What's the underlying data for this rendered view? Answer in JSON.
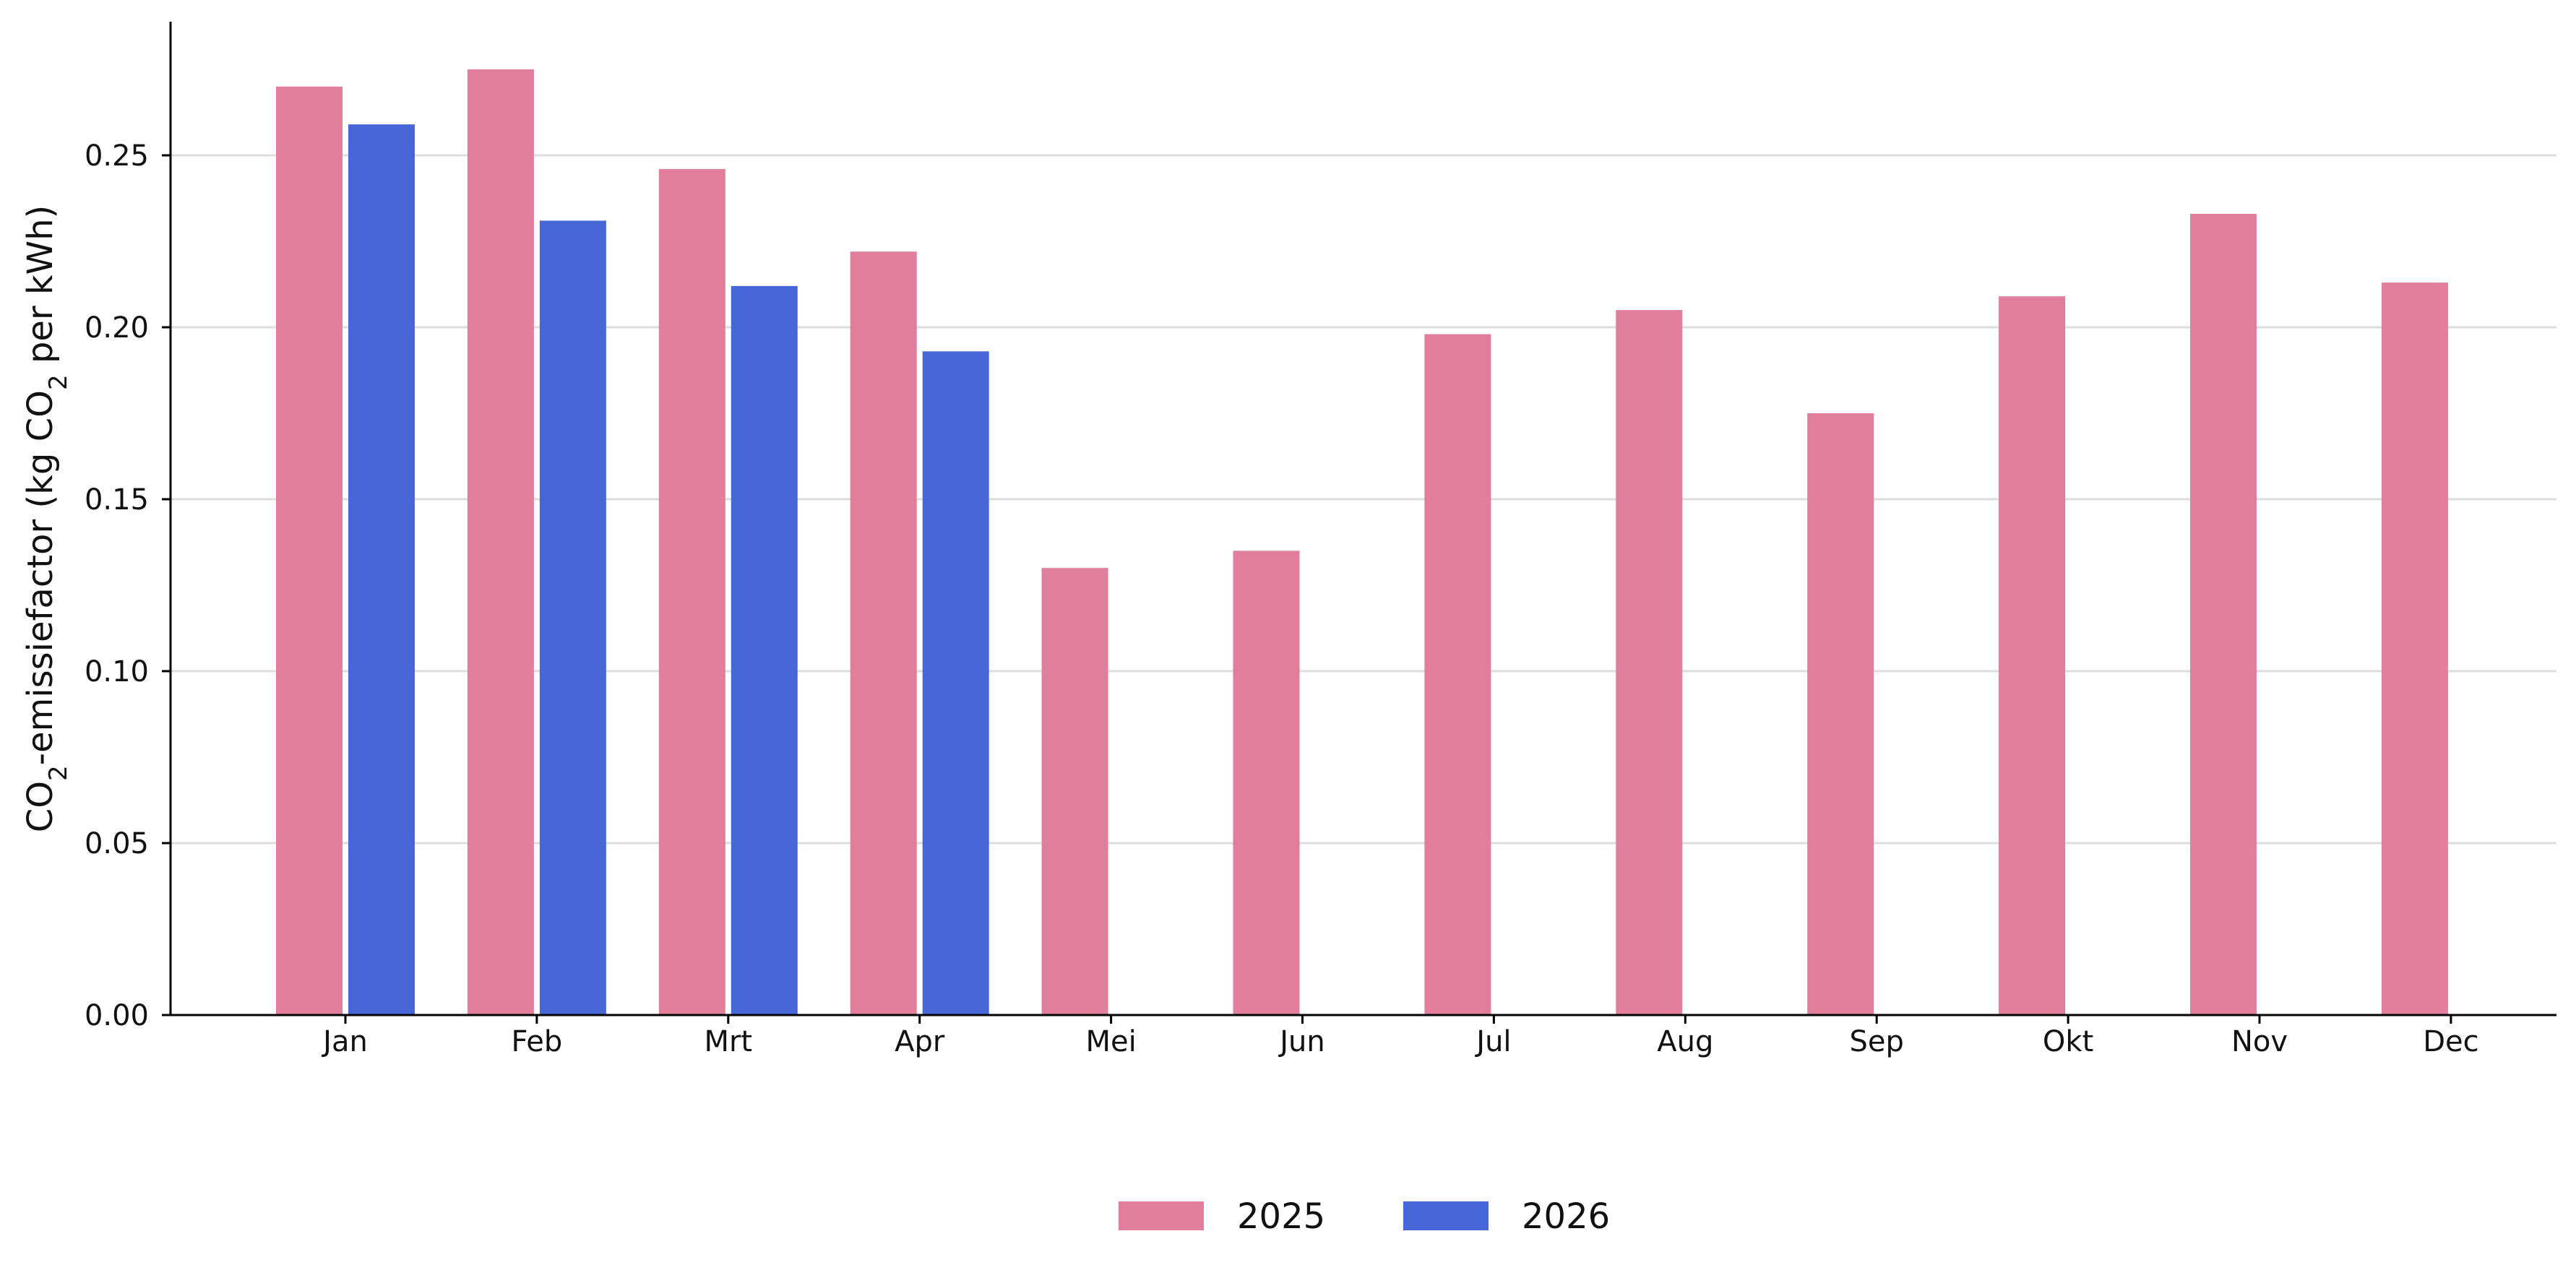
{
  "chart_data": {
    "type": "bar",
    "categories": [
      "Jan",
      "Feb",
      "Mrt",
      "Apr",
      "Mei",
      "Jun",
      "Jul",
      "Aug",
      "Sep",
      "Okt",
      "Nov",
      "Dec"
    ],
    "series": [
      {
        "name": "2025",
        "color": "#e07e9b",
        "values": [
          0.27,
          0.275,
          0.246,
          0.222,
          0.13,
          0.135,
          0.198,
          0.205,
          0.175,
          0.209,
          0.233,
          0.213
        ]
      },
      {
        "name": "2026",
        "color": "#4767d9",
        "values": [
          0.259,
          0.231,
          0.212,
          0.193,
          null,
          null,
          null,
          null,
          null,
          null,
          null,
          null
        ]
      }
    ],
    "title": "",
    "xlabel": "",
    "ylabel": {
      "pre": "CO",
      "sub1": "2",
      "mid": "-emissiefactor (kg CO",
      "sub2": "2",
      "post": " per kWh)"
    },
    "ylim": [
      0,
      0.29
    ],
    "yticks": [
      "0.00",
      "0.05",
      "0.10",
      "0.15",
      "0.20",
      "0.25"
    ],
    "grid": "horizontal",
    "legend_position": "bottom-center"
  }
}
